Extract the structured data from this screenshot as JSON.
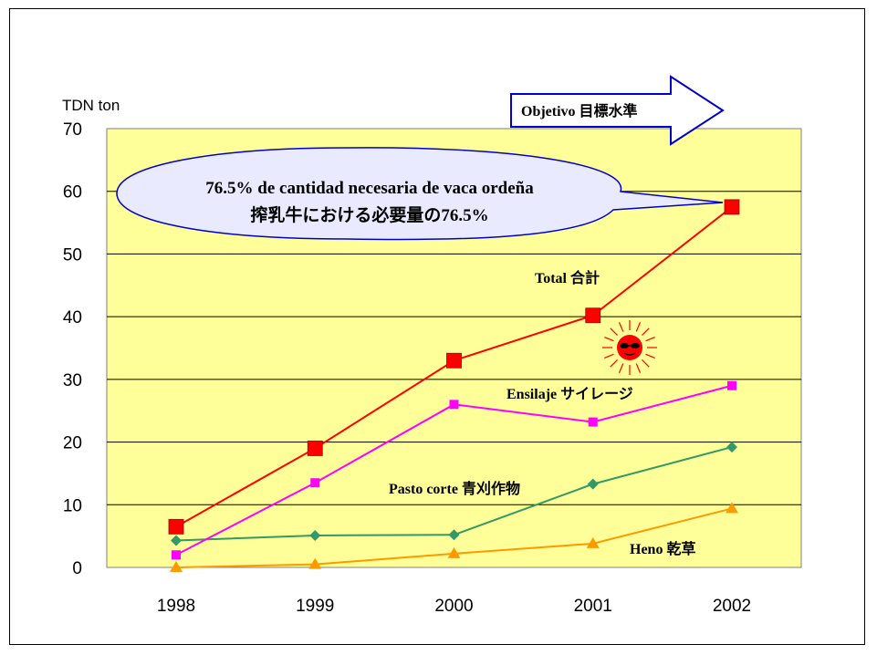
{
  "chart_data": {
    "type": "line",
    "ylabel": "TDN ton",
    "ylim": [
      0,
      70
    ],
    "yticks": [
      0,
      10,
      20,
      30,
      40,
      50,
      60,
      70
    ],
    "categories": [
      "1998",
      "1999",
      "2000",
      "2001",
      "2002"
    ],
    "grid": true,
    "series": [
      {
        "name": "Total 合計",
        "color": "#ff0000",
        "marker": "square-large",
        "values": [
          6.5,
          19,
          33,
          40.2,
          57.5
        ]
      },
      {
        "name": "Ensilaje サイレージ",
        "color": "#ff00ff",
        "marker": "square",
        "values": [
          2,
          13.5,
          26,
          23.2,
          29
        ]
      },
      {
        "name": "Pasto corte 青刈作物",
        "color": "#339966",
        "marker": "diamond",
        "values": [
          4.3,
          5.1,
          5.2,
          13.3,
          19.2
        ]
      },
      {
        "name": "Heno 乾草",
        "color": "#ff9900",
        "marker": "triangle",
        "values": [
          0,
          0.5,
          2.2,
          3.8,
          9.4
        ]
      }
    ],
    "annotations": {
      "objective": "Objetivo 目標水準",
      "callout_line1": "76.5% de cantidad necesaria de vaca ordeña",
      "callout_line2": "搾乳牛における必要量の76.5%"
    }
  },
  "colors": {
    "plot_bg": "#ffff99",
    "callout_fill": "#eaeaff",
    "callout_stroke": "#0000cc",
    "arrow_stroke": "#0000cc",
    "sun": "#ff0000"
  },
  "icons": {
    "sun": "sun-with-sunglasses-icon"
  }
}
